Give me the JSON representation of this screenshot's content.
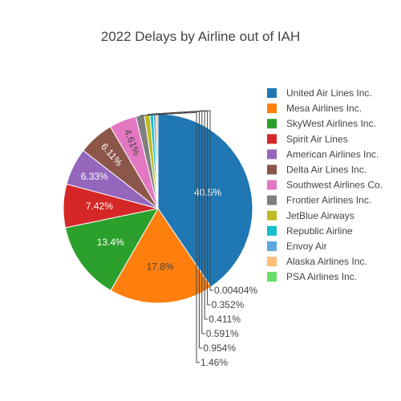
{
  "chart_data": {
    "type": "pie",
    "title": "2022 Delays by Airline out of IAH",
    "legend_position": "right",
    "slices": [
      {
        "name": "United Air Lines Inc.",
        "percent": 40.5,
        "label": "40.5%",
        "color": "#1f77b4",
        "label_color": "#ffffff"
      },
      {
        "name": "Mesa Airlines Inc.",
        "percent": 17.8,
        "label": "17.8%",
        "color": "#ff7f0e",
        "label_color": "#444444"
      },
      {
        "name": "SkyWest Airlines Inc.",
        "percent": 13.4,
        "label": "13.4%",
        "color": "#2ca02c",
        "label_color": "#ffffff"
      },
      {
        "name": "Spirit Air Lines",
        "percent": 7.42,
        "label": "7.42%",
        "color": "#d62728",
        "label_color": "#ffffff"
      },
      {
        "name": "American Airlines Inc.",
        "percent": 6.33,
        "label": "6.33%",
        "color": "#9467bd",
        "label_color": "#ffffff"
      },
      {
        "name": "Delta Air Lines Inc.",
        "percent": 6.11,
        "label": "6.11%",
        "color": "#8c564b",
        "label_color": "#ffffff"
      },
      {
        "name": "Southwest Airlines Co.",
        "percent": 4.61,
        "label": "4.61%",
        "color": "#e377c2",
        "label_color": "#444444"
      },
      {
        "name": "Frontier Airlines Inc.",
        "percent": 1.46,
        "label": "1.46%",
        "color": "#7f7f7f",
        "label_color": "#444444"
      },
      {
        "name": "JetBlue Airways",
        "percent": 0.954,
        "label": "0.954%",
        "color": "#bcbd22",
        "label_color": "#444444"
      },
      {
        "name": "Republic Airline",
        "percent": 0.591,
        "label": "0.591%",
        "color": "#17becf",
        "label_color": "#444444"
      },
      {
        "name": "Envoy Air",
        "percent": 0.411,
        "label": "0.411%",
        "color": "#5ba8e0",
        "label_color": "#444444"
      },
      {
        "name": "Alaska Airlines Inc.",
        "percent": 0.352,
        "label": "0.352%",
        "color": "#ffbb78",
        "label_color": "#444444"
      },
      {
        "name": "PSA Airlines Inc.",
        "percent": 0.00404,
        "label": "0.00404%",
        "color": "#66dd66",
        "label_color": "#444444"
      }
    ]
  }
}
